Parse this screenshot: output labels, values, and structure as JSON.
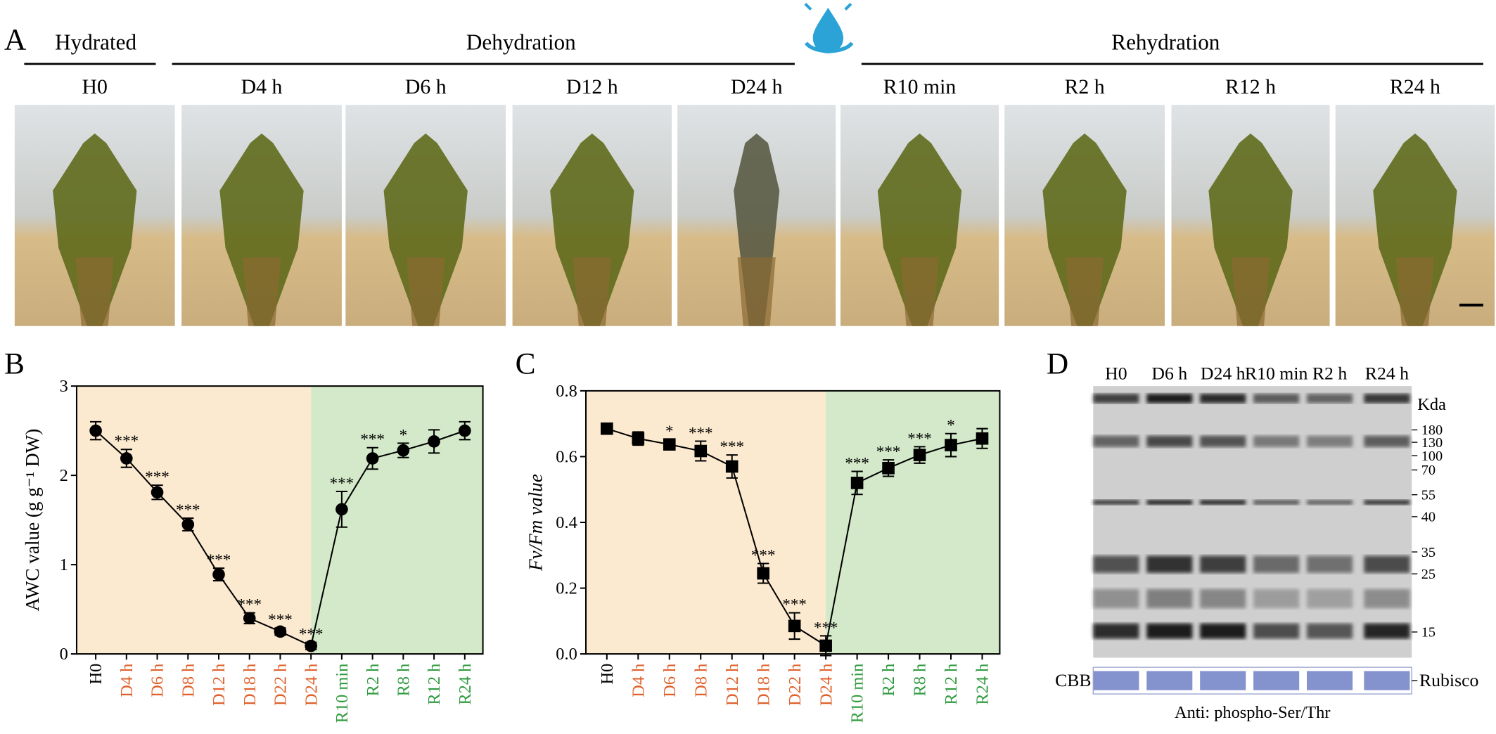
{
  "panel_a": {
    "label": "A",
    "groups": [
      "Hydrated",
      "Dehydration",
      "Rehydration"
    ],
    "samples": [
      "H0",
      "D4 h",
      "D6 h",
      "D12 h",
      "D24 h",
      "R10 min",
      "R2 h",
      "R12 h",
      "R24 h"
    ]
  },
  "chart_data": [
    {
      "type": "line",
      "panel_label": "B",
      "ylabel": "AWC value (g g⁻¹ DW)",
      "marker": "circle",
      "color": "#000000",
      "categories": [
        "H0",
        "D4 h",
        "D6 h",
        "D8 h",
        "D12 h",
        "D18 h",
        "D22 h",
        "D24 h",
        "R10 min",
        "R2 h",
        "R8 h",
        "R12 h",
        "R24 h"
      ],
      "category_colors": [
        "#000000",
        "#e0602a",
        "#e0602a",
        "#e0602a",
        "#e0602a",
        "#e0602a",
        "#e0602a",
        "#e0602a",
        "#2e9a3e",
        "#2e9a3e",
        "#2e9a3e",
        "#2e9a3e",
        "#2e9a3e"
      ],
      "shade_colors": [
        "#fcead0",
        "#d3e9c9"
      ],
      "values": [
        2.5,
        2.19,
        1.81,
        1.45,
        0.89,
        0.4,
        0.25,
        0.09,
        1.62,
        2.19,
        2.28,
        2.38,
        2.5
      ],
      "errors": [
        0.1,
        0.1,
        0.08,
        0.07,
        0.07,
        0.06,
        0.04,
        0.04,
        0.2,
        0.12,
        0.08,
        0.13,
        0.1
      ],
      "annotations": [
        null,
        "***",
        "***",
        "***",
        "***",
        "***",
        "***",
        "***",
        "***",
        "***",
        "*",
        null,
        null
      ],
      "ylim": [
        0,
        3
      ],
      "yticks": [
        0,
        1,
        2,
        3
      ]
    },
    {
      "type": "line",
      "panel_label": "C",
      "ylabel": "Fv/Fm value",
      "marker": "square",
      "color": "#000000",
      "categories": [
        "H0",
        "D4 h",
        "D6 h",
        "D8 h",
        "D12 h",
        "D18 h",
        "D22 h",
        "D24 h",
        "R10 min",
        "R2 h",
        "R8 h",
        "R12 h",
        "R24 h"
      ],
      "category_colors": [
        "#000000",
        "#e0602a",
        "#e0602a",
        "#e0602a",
        "#e0602a",
        "#e0602a",
        "#e0602a",
        "#e0602a",
        "#2e9a3e",
        "#2e9a3e",
        "#2e9a3e",
        "#2e9a3e",
        "#2e9a3e"
      ],
      "shade_colors": [
        "#fcead0",
        "#d3e9c9"
      ],
      "values": [
        0.685,
        0.655,
        0.637,
        0.617,
        0.57,
        0.245,
        0.085,
        0.025,
        0.52,
        0.565,
        0.605,
        0.635,
        0.655
      ],
      "errors": [
        0.01,
        0.02,
        0.015,
        0.03,
        0.035,
        0.03,
        0.04,
        0.03,
        0.035,
        0.025,
        0.025,
        0.035,
        0.03
      ],
      "annotations": [
        null,
        null,
        "*",
        "***",
        "***",
        "***",
        "***",
        "***",
        "***",
        "***",
        "***",
        "*",
        null
      ],
      "ylim": [
        0,
        0.8
      ],
      "yticks": [
        {
          "value": 0,
          "label": "0.0"
        },
        0.2,
        0.4,
        0.6,
        0.8
      ]
    }
  ],
  "panel_d": {
    "label": "D",
    "lanes": [
      "H0",
      "D6 h",
      "D24 h",
      "R10 min",
      "R2 h",
      "R24 h"
    ],
    "unit": "Kda",
    "markers": [
      180,
      130,
      100,
      70,
      55,
      40,
      35,
      25,
      15
    ],
    "stain": "CBB",
    "protein": "Rubisco",
    "caption": "Anti: phospho-Ser/Thr"
  }
}
